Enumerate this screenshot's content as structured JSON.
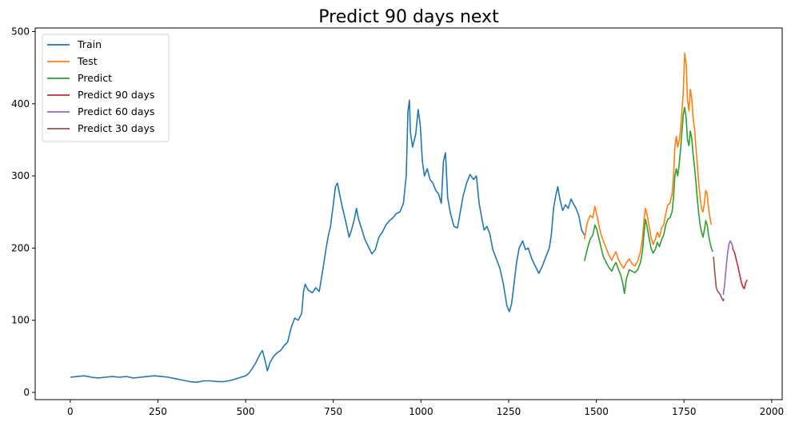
{
  "chart_data": {
    "type": "line",
    "title": "Predict 90 days next",
    "xlabel": "",
    "ylabel": "",
    "xlim": [
      -100,
      2030
    ],
    "ylim": [
      -10,
      505
    ],
    "xticks": [
      0,
      250,
      500,
      750,
      1000,
      1250,
      1500,
      1750,
      2000
    ],
    "yticks": [
      0,
      100,
      200,
      300,
      400,
      500
    ],
    "grid": false,
    "legend_position": "top-left",
    "series": [
      {
        "name": "Train",
        "color": "#1f77b4",
        "points": [
          [
            0,
            21
          ],
          [
            20,
            22
          ],
          [
            40,
            23
          ],
          [
            60,
            21
          ],
          [
            80,
            20
          ],
          [
            100,
            21
          ],
          [
            120,
            22
          ],
          [
            140,
            21
          ],
          [
            160,
            22
          ],
          [
            180,
            20
          ],
          [
            200,
            21
          ],
          [
            220,
            22
          ],
          [
            240,
            23
          ],
          [
            260,
            22
          ],
          [
            280,
            21
          ],
          [
            300,
            19
          ],
          [
            320,
            17
          ],
          [
            340,
            15
          ],
          [
            360,
            14
          ],
          [
            380,
            16
          ],
          [
            400,
            16
          ],
          [
            420,
            15
          ],
          [
            440,
            15
          ],
          [
            460,
            17
          ],
          [
            480,
            20
          ],
          [
            500,
            23
          ],
          [
            510,
            27
          ],
          [
            520,
            34
          ],
          [
            530,
            42
          ],
          [
            540,
            52
          ],
          [
            548,
            58
          ],
          [
            555,
            45
          ],
          [
            562,
            30
          ],
          [
            570,
            42
          ],
          [
            580,
            50
          ],
          [
            590,
            55
          ],
          [
            600,
            58
          ],
          [
            610,
            65
          ],
          [
            620,
            70
          ],
          [
            630,
            90
          ],
          [
            640,
            103
          ],
          [
            650,
            100
          ],
          [
            660,
            110
          ],
          [
            665,
            140
          ],
          [
            670,
            150
          ],
          [
            678,
            142
          ],
          [
            690,
            138
          ],
          [
            700,
            145
          ],
          [
            710,
            140
          ],
          [
            720,
            170
          ],
          [
            728,
            195
          ],
          [
            735,
            215
          ],
          [
            742,
            230
          ],
          [
            750,
            260
          ],
          [
            756,
            285
          ],
          [
            762,
            290
          ],
          [
            768,
            275
          ],
          [
            775,
            258
          ],
          [
            785,
            238
          ],
          [
            795,
            215
          ],
          [
            802,
            225
          ],
          [
            810,
            240
          ],
          [
            816,
            255
          ],
          [
            822,
            240
          ],
          [
            830,
            228
          ],
          [
            840,
            212
          ],
          [
            850,
            202
          ],
          [
            860,
            192
          ],
          [
            870,
            198
          ],
          [
            880,
            215
          ],
          [
            890,
            222
          ],
          [
            900,
            232
          ],
          [
            910,
            238
          ],
          [
            920,
            242
          ],
          [
            930,
            248
          ],
          [
            940,
            250
          ],
          [
            950,
            262
          ],
          [
            958,
            300
          ],
          [
            963,
            390
          ],
          [
            967,
            405
          ],
          [
            970,
            360
          ],
          [
            976,
            340
          ],
          [
            985,
            358
          ],
          [
            992,
            392
          ],
          [
            998,
            370
          ],
          [
            1004,
            320
          ],
          [
            1010,
            300
          ],
          [
            1018,
            310
          ],
          [
            1026,
            295
          ],
          [
            1034,
            290
          ],
          [
            1042,
            280
          ],
          [
            1050,
            275
          ],
          [
            1058,
            262
          ],
          [
            1064,
            320
          ],
          [
            1070,
            332
          ],
          [
            1076,
            270
          ],
          [
            1084,
            248
          ],
          [
            1094,
            230
          ],
          [
            1104,
            228
          ],
          [
            1112,
            250
          ],
          [
            1120,
            272
          ],
          [
            1130,
            290
          ],
          [
            1140,
            302
          ],
          [
            1150,
            295
          ],
          [
            1158,
            300
          ],
          [
            1166,
            262
          ],
          [
            1172,
            245
          ],
          [
            1180,
            225
          ],
          [
            1188,
            230
          ],
          [
            1196,
            220
          ],
          [
            1205,
            198
          ],
          [
            1215,
            185
          ],
          [
            1225,
            172
          ],
          [
            1235,
            150
          ],
          [
            1245,
            120
          ],
          [
            1252,
            112
          ],
          [
            1258,
            122
          ],
          [
            1265,
            148
          ],
          [
            1272,
            178
          ],
          [
            1280,
            200
          ],
          [
            1290,
            210
          ],
          [
            1298,
            198
          ],
          [
            1306,
            200
          ],
          [
            1316,
            185
          ],
          [
            1326,
            175
          ],
          [
            1336,
            165
          ],
          [
            1346,
            175
          ],
          [
            1356,
            188
          ],
          [
            1366,
            200
          ],
          [
            1372,
            220
          ],
          [
            1378,
            255
          ],
          [
            1384,
            272
          ],
          [
            1390,
            285
          ],
          [
            1396,
            268
          ],
          [
            1404,
            252
          ],
          [
            1412,
            260
          ],
          [
            1420,
            255
          ],
          [
            1428,
            268
          ],
          [
            1434,
            262
          ],
          [
            1442,
            255
          ],
          [
            1450,
            245
          ],
          [
            1458,
            225
          ],
          [
            1466,
            218
          ]
        ]
      },
      {
        "name": "Test",
        "color": "#ff7f0e",
        "points": [
          [
            1466,
            212
          ],
          [
            1474,
            235
          ],
          [
            1482,
            245
          ],
          [
            1490,
            242
          ],
          [
            1496,
            258
          ],
          [
            1502,
            245
          ],
          [
            1508,
            230
          ],
          [
            1514,
            218
          ],
          [
            1520,
            210
          ],
          [
            1528,
            200
          ],
          [
            1536,
            190
          ],
          [
            1544,
            183
          ],
          [
            1550,
            190
          ],
          [
            1556,
            195
          ],
          [
            1562,
            185
          ],
          [
            1570,
            178
          ],
          [
            1578,
            172
          ],
          [
            1586,
            180
          ],
          [
            1594,
            185
          ],
          [
            1602,
            178
          ],
          [
            1610,
            175
          ],
          [
            1618,
            182
          ],
          [
            1626,
            195
          ],
          [
            1632,
            215
          ],
          [
            1636,
            240
          ],
          [
            1640,
            255
          ],
          [
            1644,
            248
          ],
          [
            1650,
            232
          ],
          [
            1656,
            215
          ],
          [
            1662,
            205
          ],
          [
            1668,
            212
          ],
          [
            1674,
            222
          ],
          [
            1680,
            215
          ],
          [
            1686,
            228
          ],
          [
            1692,
            232
          ],
          [
            1698,
            248
          ],
          [
            1704,
            260
          ],
          [
            1710,
            262
          ],
          [
            1716,
            275
          ],
          [
            1720,
            300
          ],
          [
            1724,
            340
          ],
          [
            1728,
            355
          ],
          [
            1732,
            340
          ],
          [
            1736,
            348
          ],
          [
            1740,
            362
          ],
          [
            1744,
            390
          ],
          [
            1748,
            415
          ],
          [
            1752,
            470
          ],
          [
            1756,
            455
          ],
          [
            1760,
            405
          ],
          [
            1764,
            390
          ],
          [
            1768,
            420
          ],
          [
            1772,
            408
          ],
          [
            1776,
            380
          ],
          [
            1780,
            365
          ],
          [
            1784,
            340
          ],
          [
            1788,
            315
          ],
          [
            1792,
            290
          ],
          [
            1796,
            270
          ],
          [
            1800,
            255
          ],
          [
            1804,
            250
          ],
          [
            1808,
            262
          ],
          [
            1812,
            280
          ],
          [
            1816,
            275
          ],
          [
            1820,
            255
          ],
          [
            1824,
            242
          ],
          [
            1828,
            232
          ]
        ]
      },
      {
        "name": "Predict",
        "color": "#2ca02c",
        "points": [
          [
            1466,
            182
          ],
          [
            1474,
            198
          ],
          [
            1482,
            212
          ],
          [
            1490,
            218
          ],
          [
            1496,
            232
          ],
          [
            1502,
            225
          ],
          [
            1508,
            212
          ],
          [
            1514,
            200
          ],
          [
            1520,
            188
          ],
          [
            1528,
            180
          ],
          [
            1536,
            173
          ],
          [
            1544,
            168
          ],
          [
            1550,
            175
          ],
          [
            1556,
            180
          ],
          [
            1562,
            172
          ],
          [
            1570,
            162
          ],
          [
            1576,
            150
          ],
          [
            1580,
            137
          ],
          [
            1586,
            158
          ],
          [
            1594,
            170
          ],
          [
            1602,
            168
          ],
          [
            1610,
            166
          ],
          [
            1618,
            170
          ],
          [
            1626,
            180
          ],
          [
            1632,
            198
          ],
          [
            1636,
            220
          ],
          [
            1640,
            240
          ],
          [
            1644,
            232
          ],
          [
            1650,
            215
          ],
          [
            1656,
            200
          ],
          [
            1662,
            193
          ],
          [
            1668,
            198
          ],
          [
            1674,
            208
          ],
          [
            1680,
            202
          ],
          [
            1686,
            212
          ],
          [
            1692,
            218
          ],
          [
            1698,
            232
          ],
          [
            1704,
            240
          ],
          [
            1710,
            242
          ],
          [
            1716,
            250
          ],
          [
            1720,
            270
          ],
          [
            1724,
            300
          ],
          [
            1728,
            310
          ],
          [
            1732,
            300
          ],
          [
            1736,
            315
          ],
          [
            1740,
            335
          ],
          [
            1744,
            360
          ],
          [
            1748,
            385
          ],
          [
            1752,
            395
          ],
          [
            1756,
            380
          ],
          [
            1760,
            350
          ],
          [
            1764,
            342
          ],
          [
            1768,
            362
          ],
          [
            1772,
            352
          ],
          [
            1776,
            330
          ],
          [
            1780,
            312
          ],
          [
            1784,
            292
          ],
          [
            1788,
            268
          ],
          [
            1792,
            248
          ],
          [
            1796,
            232
          ],
          [
            1800,
            222
          ],
          [
            1804,
            215
          ],
          [
            1808,
            225
          ],
          [
            1812,
            238
          ],
          [
            1816,
            232
          ],
          [
            1820,
            218
          ],
          [
            1824,
            208
          ],
          [
            1828,
            200
          ],
          [
            1832,
            195
          ]
        ]
      },
      {
        "name": "Predict 90 days",
        "color": "#d62728",
        "points": [
          [
            1888,
            200
          ],
          [
            1894,
            194
          ],
          [
            1900,
            182
          ],
          [
            1906,
            170
          ],
          [
            1910,
            160
          ],
          [
            1914,
            152
          ],
          [
            1918,
            146
          ],
          [
            1922,
            144
          ],
          [
            1926,
            152
          ],
          [
            1930,
            156
          ]
        ]
      },
      {
        "name": "Predict 60 days",
        "color": "#9467bd",
        "points": [
          [
            1862,
            135
          ],
          [
            1866,
            150
          ],
          [
            1870,
            172
          ],
          [
            1874,
            192
          ],
          [
            1878,
            205
          ],
          [
            1882,
            210
          ],
          [
            1886,
            206
          ],
          [
            1890,
            200
          ]
        ]
      },
      {
        "name": "Predict 30 days",
        "color": "#8c564b",
        "points": [
          [
            1834,
            188
          ],
          [
            1838,
            165
          ],
          [
            1842,
            145
          ],
          [
            1846,
            140
          ],
          [
            1850,
            138
          ],
          [
            1854,
            135
          ],
          [
            1858,
            130
          ],
          [
            1862,
            127
          ],
          [
            1864,
            130
          ]
        ]
      }
    ]
  }
}
